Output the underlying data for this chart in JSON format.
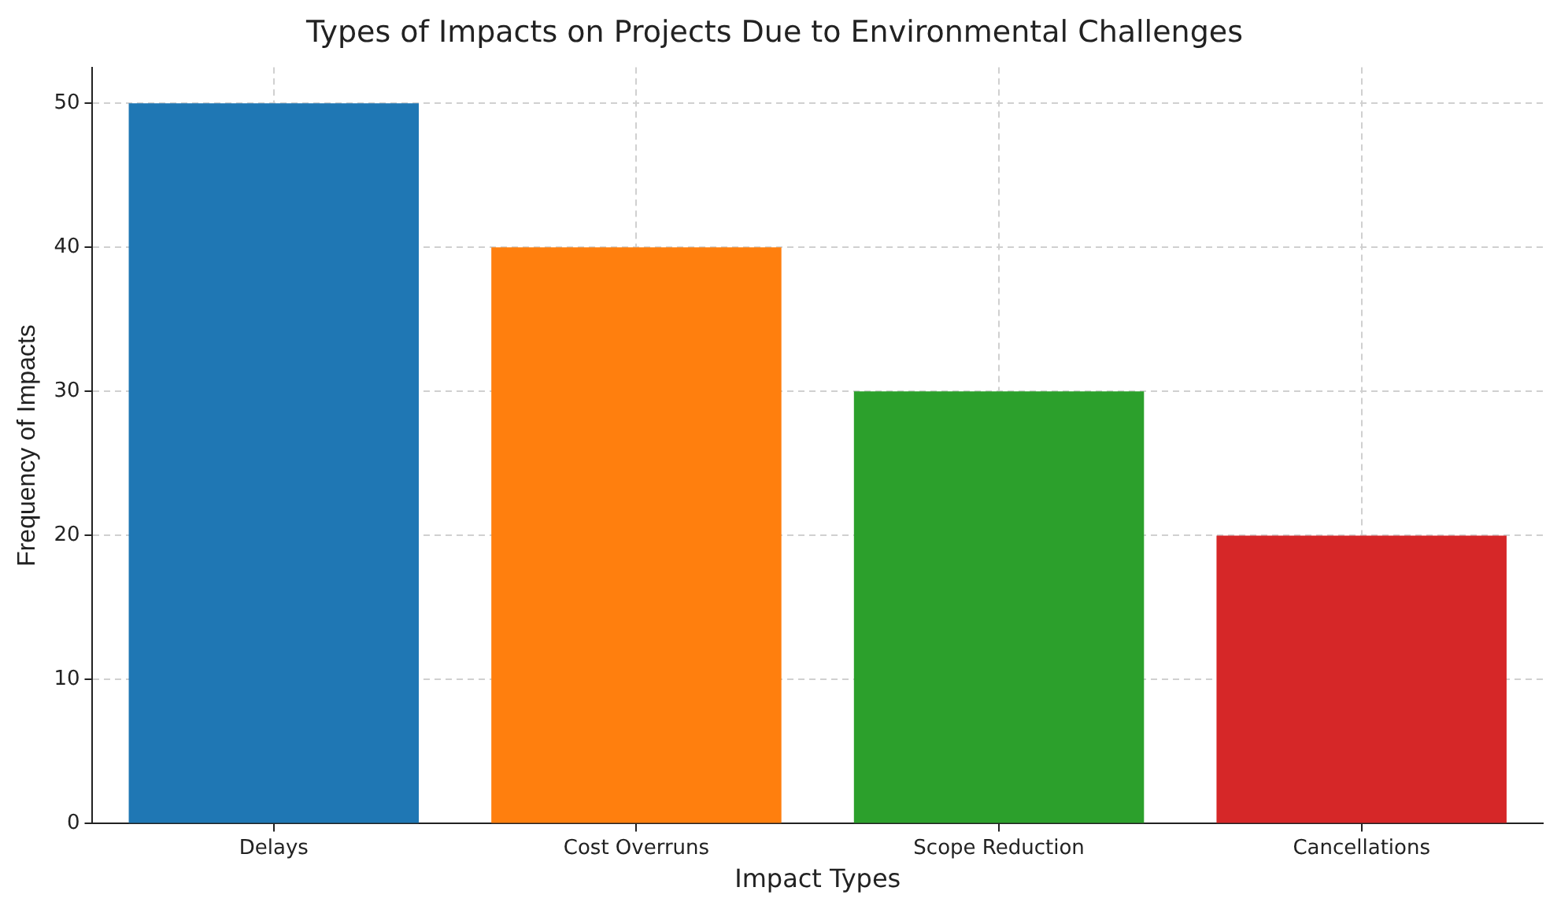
{
  "chart_data": {
    "type": "bar",
    "title": "Types of Impacts on Projects Due to Environmental Challenges",
    "xlabel": "Impact Types",
    "ylabel": "Frequency of Impacts",
    "categories": [
      "Delays",
      "Cost Overruns",
      "Scope Reduction",
      "Cancellations"
    ],
    "values": [
      50,
      40,
      30,
      20
    ],
    "colors": [
      "#1f77b4",
      "#ff7f0e",
      "#2ca02c",
      "#d62728"
    ],
    "ylim": [
      0,
      52.5
    ],
    "yticks": [
      0,
      10,
      20,
      30,
      40,
      50
    ],
    "grid": true,
    "legend": false
  }
}
